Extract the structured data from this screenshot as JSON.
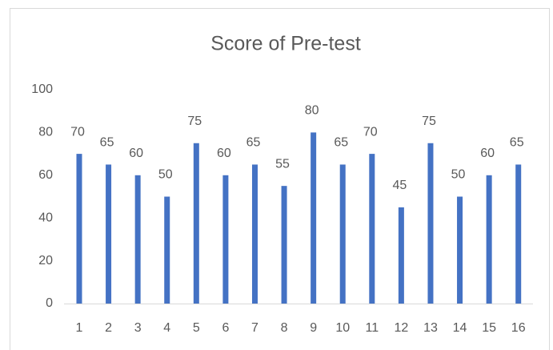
{
  "chart_data": {
    "type": "bar",
    "title": "Score of Pre-test",
    "categories": [
      "1",
      "2",
      "3",
      "4",
      "5",
      "6",
      "7",
      "8",
      "9",
      "10",
      "11",
      "12",
      "13",
      "14",
      "15",
      "16"
    ],
    "values": [
      70,
      65,
      60,
      50,
      75,
      60,
      65,
      55,
      80,
      65,
      70,
      45,
      75,
      50,
      60,
      65
    ],
    "color": "#4472c4",
    "ylim": [
      0,
      100
    ],
    "yticks": [
      0,
      20,
      40,
      60,
      80,
      100
    ],
    "grid": false,
    "data_labels": true
  }
}
